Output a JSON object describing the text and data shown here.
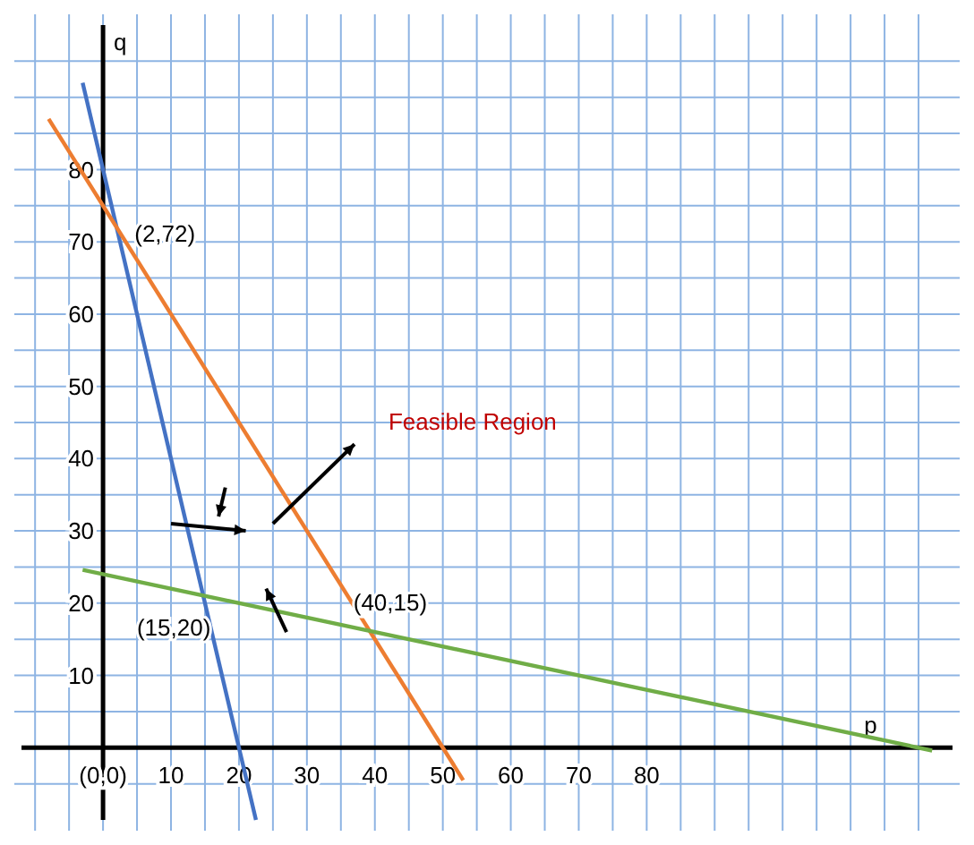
{
  "chart_data": {
    "type": "line",
    "xlabel": "p",
    "ylabel": "q",
    "xlim": [
      -12,
      125
    ],
    "ylim": [
      -10,
      100
    ],
    "xticks": [
      {
        "value": -10,
        "label": null
      },
      {
        "value": -5,
        "label": null
      },
      {
        "value": 0,
        "label": "(0,0)"
      },
      {
        "value": 5,
        "label": null
      },
      10,
      {
        "value": 15,
        "label": null
      },
      20,
      {
        "value": 25,
        "label": null
      },
      30,
      {
        "value": 35,
        "label": null
      },
      40,
      {
        "value": 45,
        "label": null
      },
      50,
      {
        "value": 55,
        "label": null
      },
      60,
      {
        "value": 65,
        "label": null
      },
      70,
      {
        "value": 75,
        "label": null
      },
      80,
      {
        "value": 85,
        "label": null
      },
      {
        "value": 90,
        "label": null
      },
      {
        "value": 95,
        "label": null
      },
      {
        "value": 100,
        "label": null
      },
      {
        "value": 105,
        "label": null
      },
      {
        "value": 110,
        "label": null
      },
      {
        "value": 115,
        "label": null
      },
      {
        "value": 120,
        "label": null
      }
    ],
    "yticks": [
      {
        "value": -5,
        "label": null
      },
      {
        "value": 5,
        "label": null
      },
      10,
      {
        "value": 15,
        "label": null
      },
      20,
      {
        "value": 25,
        "label": null
      },
      30,
      {
        "value": 35,
        "label": null
      },
      40,
      {
        "value": 45,
        "label": null
      },
      50,
      {
        "value": 55,
        "label": null
      },
      60,
      {
        "value": 65,
        "label": null
      },
      70,
      {
        "value": 75,
        "label": null
      },
      80,
      {
        "value": 85,
        "label": null
      },
      {
        "value": 90,
        "label": null
      },
      {
        "value": 95,
        "label": null
      }
    ],
    "grid": true,
    "marker": "none",
    "line_style": "solid",
    "series": [
      {
        "color": "#4472c4",
        "x": [
          -3,
          22.5
        ],
        "values": [
          92,
          -10
        ]
      },
      {
        "color": "#ed7d31",
        "x": [
          -8,
          53
        ],
        "values": [
          87,
          -4.5
        ]
      },
      {
        "color": "#70ad47",
        "x": [
          -3,
          122
        ],
        "values": [
          24.6,
          -0.4
        ]
      }
    ],
    "annotations": [
      {
        "text": "(2,72)",
        "x": 2,
        "y": 72
      },
      {
        "text": "(15,20)",
        "x": 15,
        "y": 20
      },
      {
        "text": "(40,15)",
        "x": 40,
        "y": 15
      },
      "Feasible Region"
    ]
  }
}
